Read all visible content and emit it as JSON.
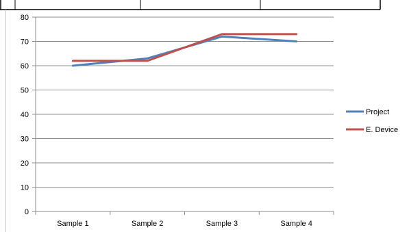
{
  "chart_data": {
    "type": "line",
    "categories": [
      "Sample 1",
      "Sample 2",
      "Sample 3",
      "Sample 4"
    ],
    "series": [
      {
        "name": "Project",
        "values": [
          60,
          63,
          72,
          70
        ],
        "color": "#4F81BD"
      },
      {
        "name": "E. Device",
        "values": [
          62,
          62,
          73,
          73
        ],
        "color": "#C0504D"
      }
    ],
    "ylim": [
      0,
      80
    ],
    "yticks": [
      "0",
      "10",
      "20",
      "30",
      "40",
      "50",
      "60",
      "70",
      "80"
    ],
    "grid": true,
    "legend": "right",
    "title": "",
    "xlabel": "",
    "ylabel": ""
  }
}
